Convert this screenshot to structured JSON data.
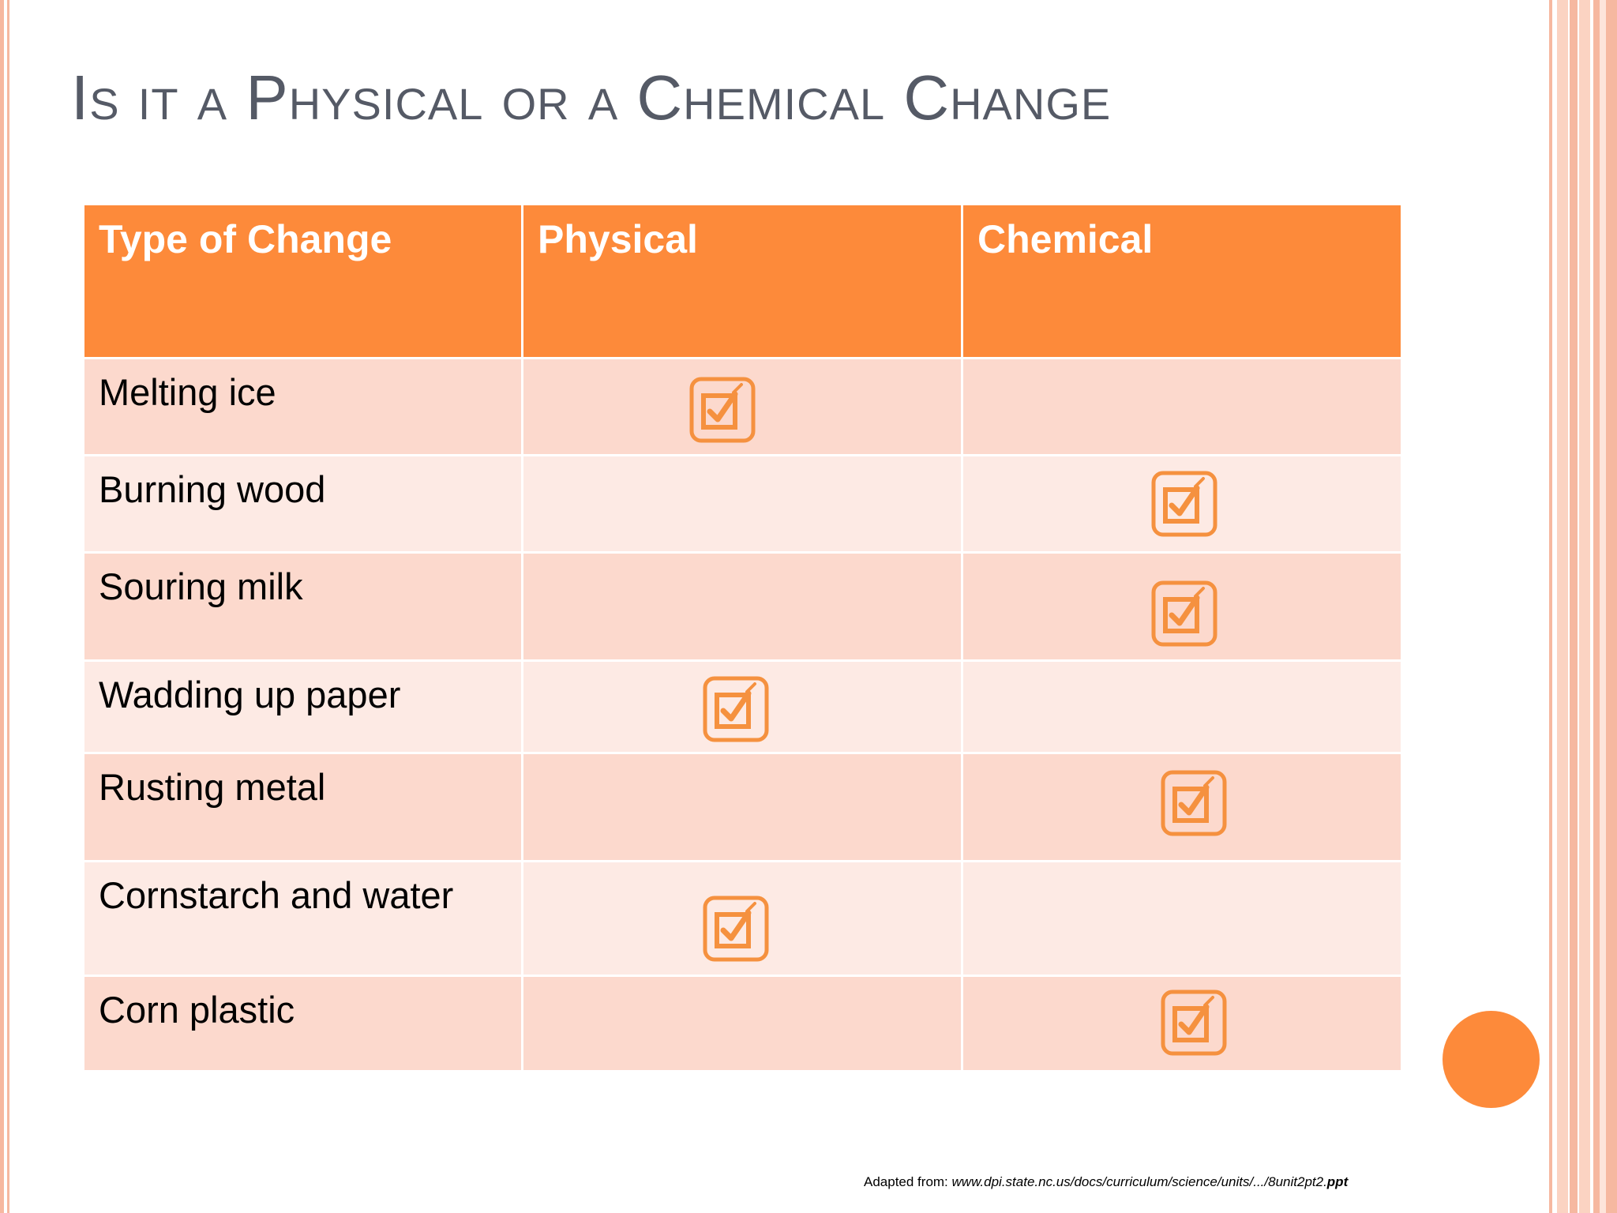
{
  "slide": {
    "title": "Is it a Physical or a Chemical Change",
    "colors": {
      "header": "#fd8a3a",
      "row_dark": "#fcd9cd",
      "row_light": "#fdeae4",
      "accent": "#fd8a3a",
      "title_text": "#555a66",
      "border_stripe": "#f6b8a0"
    }
  },
  "table": {
    "headers": [
      "Type of Change",
      "Physical",
      "Chemical"
    ],
    "rows": [
      {
        "label": "Melting ice",
        "physical": true,
        "chemical": false
      },
      {
        "label": "Burning wood",
        "physical": false,
        "chemical": true
      },
      {
        "label": "Souring milk",
        "physical": false,
        "chemical": true
      },
      {
        "label": "Wadding up paper",
        "physical": true,
        "chemical": false
      },
      {
        "label": "Rusting metal",
        "physical": false,
        "chemical": true
      },
      {
        "label": "Cornstarch and water",
        "physical": true,
        "chemical": false
      },
      {
        "label": "Corn plastic",
        "physical": false,
        "chemical": true
      }
    ],
    "check_icon": "checkbox-checked-icon"
  },
  "footer": {
    "source_prefix": "Adapted from: ",
    "source_url": "www.dpi.state.nc.us/docs/curriculum/science/units/.../8unit2pt2.",
    "source_ext": "ppt"
  }
}
